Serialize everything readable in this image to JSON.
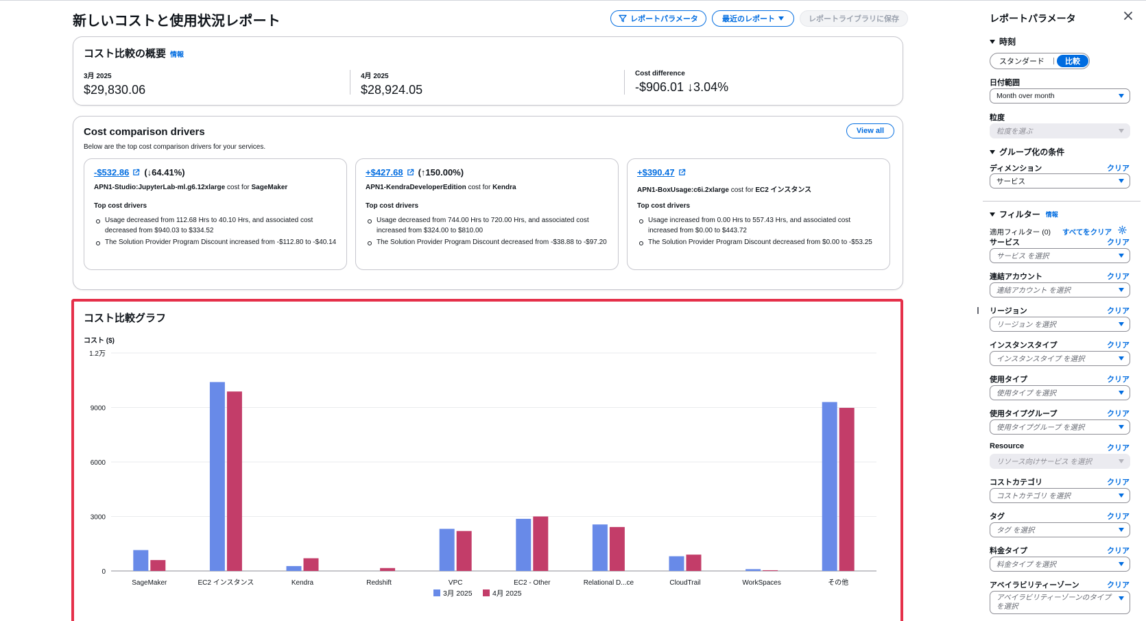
{
  "header": {
    "title": "新しいコストと使用状況レポート",
    "btn_params": "レポートパラメータ",
    "btn_recent": "最近のレポート",
    "btn_save": "レポートライブラリに保存"
  },
  "summary": {
    "title": "コスト比較の概要",
    "info": "情報",
    "col1_label": "3月 2025",
    "col1_value": "$29,830.06",
    "col2_label": "4月 2025",
    "col2_value": "$28,924.05",
    "col3_label": "Cost difference",
    "col3_value": "-$906.01 ↓3.04%"
  },
  "drivers": {
    "title": "Cost comparison drivers",
    "subtitle": "Below are the top cost comparison drivers for your services.",
    "view_all": "View all",
    "top_label": "Top cost drivers",
    "cards": [
      {
        "amount": "-$532.86",
        "pct": "(↓64.41%)",
        "usage": "APN1-Studio:JupyterLab-ml.g6.12xlarge",
        "cost_for": " cost for ",
        "service": "SageMaker",
        "bullets": [
          "Usage decreased from 112.68 Hrs to 40.10 Hrs, and associated cost decreased from $940.03 to $334.52",
          "The Solution Provider Program Discount increased from -$112.80 to -$40.14"
        ]
      },
      {
        "amount": "+$427.68",
        "pct": "(↑150.00%)",
        "usage": "APN1-KendraDeveloperEdition",
        "cost_for": " cost for ",
        "service": "Kendra",
        "bullets": [
          "Usage decreased from 744.00 Hrs to 720.00 Hrs, and associated cost increased from $324.00 to $810.00",
          "The Solution Provider Program Discount decreased from -$38.88 to -$97.20"
        ]
      },
      {
        "amount": "+$390.47",
        "pct": "",
        "usage": "APN1-BoxUsage:c6i.2xlarge",
        "cost_for": " cost for ",
        "service": "EC2 インスタンス",
        "bullets": [
          "Usage increased from 0.00 Hrs to 557.43 Hrs, and associated cost increased from $0.00 to $443.72",
          "The Solution Provider Program Discount decreased from $0.00 to -$53.25"
        ]
      }
    ]
  },
  "chart_title": "コスト比較グラフ",
  "chart_data": {
    "type": "bar",
    "title": "コスト比較グラフ",
    "ylabel": "コスト ($)",
    "xlabel": "",
    "ylim": [
      0,
      12000
    ],
    "yticks": [
      0,
      3000,
      6000,
      9000,
      12000
    ],
    "ytick_labels": [
      "0",
      "3000",
      "6000",
      "9000",
      "1.2万"
    ],
    "categories": [
      "SageMaker",
      "EC2 インスタンス",
      "Kendra",
      "Redshift",
      "VPC",
      "EC2 - Other",
      "Relational D...ce",
      "CloudTrail",
      "WorkSpaces",
      "その他"
    ],
    "series": [
      {
        "name": "3月 2025",
        "color": "#688ae8",
        "values": [
          1150,
          10400,
          270,
          0,
          2320,
          2870,
          2560,
          810,
          100,
          9300
        ]
      },
      {
        "name": "4月 2025",
        "color": "#c33d69",
        "values": [
          600,
          9880,
          700,
          160,
          2200,
          3000,
          2420,
          900,
          40,
          8980
        ]
      }
    ],
    "legend": "bottom",
    "grid": true
  },
  "right_panel": {
    "title": "レポートパラメータ",
    "time_section": "時刻",
    "seg_standard": "スタンダード",
    "seg_compare": "比較",
    "date_range_label": "日付範囲",
    "date_range_value": "Month over month",
    "granularity_label": "粒度",
    "granularity_ph": "粒度を選ぶ",
    "group_section": "グループ化の条件",
    "dimension_label": "ディメンション",
    "dimension_value": "サービス",
    "clear": "クリア",
    "filter_section": "フィルター",
    "info": "情報",
    "applied_filters": "適用フィルター (0)",
    "clear_all": "すべてをクリア",
    "filters": [
      {
        "label": "サービス",
        "ph": "サービス を選択",
        "disabled": false
      },
      {
        "label": "連結アカウント",
        "ph": "連結アカウント を選択",
        "disabled": false
      },
      {
        "label": "リージョン",
        "ph": "リージョン を選択",
        "disabled": false
      },
      {
        "label": "インスタンスタイプ",
        "ph": "インスタンスタイプ を選択",
        "disabled": false
      },
      {
        "label": "使用タイプ",
        "ph": "使用タイプ を選択",
        "disabled": false
      },
      {
        "label": "使用タイプグループ",
        "ph": "使用タイプグループ を選択",
        "disabled": false
      },
      {
        "label": "Resource",
        "ph": "リソース向けサービス を選択",
        "disabled": true
      },
      {
        "label": "コストカテゴリ",
        "ph": "コストカテゴリ を選択",
        "disabled": false
      },
      {
        "label": "タグ",
        "ph": "タグ を選択",
        "disabled": false
      },
      {
        "label": "料金タイプ",
        "ph": "料金タイプ を選択",
        "disabled": false
      },
      {
        "label": "アベイラビリティーゾーン",
        "ph": "アベイラビリティーゾーンのタイプ を選択",
        "disabled": false
      }
    ]
  }
}
